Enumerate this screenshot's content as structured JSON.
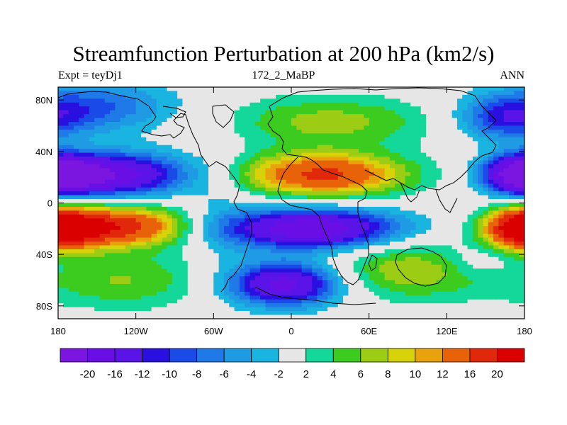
{
  "chart_data": {
    "type": "heatmap",
    "title": "Streamfunction Perturbation at 200 hPa (km2/s)",
    "subtitle_left": "Expt = teyDj1",
    "subtitle_center": "172_2_MaBP",
    "subtitle_right": "ANN",
    "x_range": [
      -180,
      180
    ],
    "y_range": [
      -90,
      90
    ],
    "x_ticks": [
      {
        "value": -180,
        "label": "180"
      },
      {
        "value": -120,
        "label": "120W"
      },
      {
        "value": -60,
        "label": "60W"
      },
      {
        "value": 0,
        "label": "0"
      },
      {
        "value": 60,
        "label": "60E"
      },
      {
        "value": 120,
        "label": "120E"
      },
      {
        "value": 180,
        "label": "180"
      }
    ],
    "y_ticks": [
      {
        "value": 80,
        "label": "80N"
      },
      {
        "value": 40,
        "label": "40N"
      },
      {
        "value": 0,
        "label": "0"
      },
      {
        "value": -40,
        "label": "40S"
      },
      {
        "value": -80,
        "label": "80S"
      }
    ],
    "colorbar_levels": [
      -20,
      -16,
      -12,
      -10,
      -8,
      -6,
      -4,
      -2,
      2,
      4,
      6,
      8,
      10,
      12,
      16,
      20
    ],
    "colorbar_colors": [
      "#7a16e0",
      "#6a0ee6",
      "#5a14e8",
      "#2a10e0",
      "#1a4ae8",
      "#1f7ae8",
      "#1f9be4",
      "#1ab4e0",
      "#e6e6e6",
      "#14d89a",
      "#3ccc20",
      "#9ccc14",
      "#d8d20a",
      "#e8a20c",
      "#e8620a",
      "#e2280a",
      "#da0000"
    ],
    "field_centers": [
      {
        "lon": -135,
        "lat": 22,
        "value": -18,
        "sx": 38,
        "sy": 12
      },
      {
        "lon": 25,
        "lat": 22,
        "value": 17,
        "sx": 45,
        "sy": 12
      },
      {
        "lon": 180,
        "lat": 22,
        "value": -12,
        "sx": 20,
        "sy": 10
      },
      {
        "lon": -180,
        "lat": 22,
        "value": -12,
        "sx": 20,
        "sy": 10
      },
      {
        "lon": -130,
        "lat": -18,
        "value": 18,
        "sx": 35,
        "sy": 11
      },
      {
        "lon": 15,
        "lat": -20,
        "value": -20,
        "sx": 48,
        "sy": 11
      },
      {
        "lon": 180,
        "lat": -20,
        "value": 13,
        "sx": 22,
        "sy": 11
      },
      {
        "lon": -180,
        "lat": -20,
        "value": 12,
        "sx": 20,
        "sy": 11
      },
      {
        "lon": -5,
        "lat": -63,
        "value": -18,
        "sx": 30,
        "sy": 12
      },
      {
        "lon": 95,
        "lat": -52,
        "value": 8,
        "sx": 45,
        "sy": 16
      },
      {
        "lon": -130,
        "lat": -60,
        "value": 6,
        "sx": 45,
        "sy": 16
      },
      {
        "lon": 30,
        "lat": 63,
        "value": 7,
        "sx": 55,
        "sy": 14
      },
      {
        "lon": -150,
        "lat": 75,
        "value": -8,
        "sx": 42,
        "sy": 14
      },
      {
        "lon": 165,
        "lat": 65,
        "value": -9,
        "sx": 25,
        "sy": 12
      },
      {
        "lon": 145,
        "lat": -45,
        "value": -4,
        "sx": 22,
        "sy": 10
      },
      {
        "lon": -55,
        "lat": 0,
        "value": -2,
        "sx": 15,
        "sy": 40
      }
    ]
  }
}
